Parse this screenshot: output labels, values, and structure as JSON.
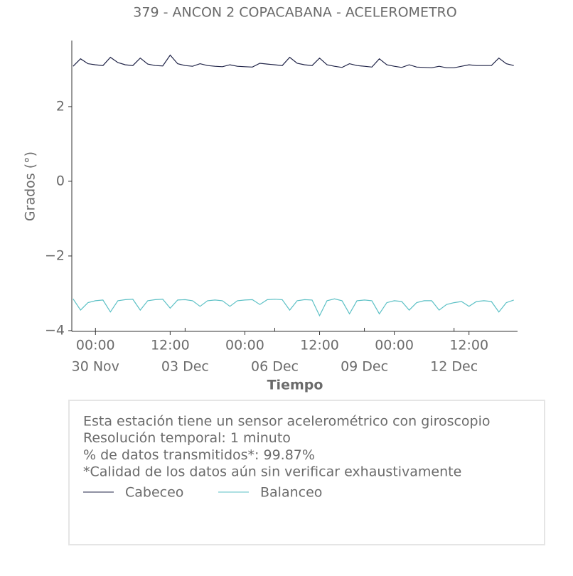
{
  "chart_data": {
    "type": "line",
    "title": "379 - ANCON 2 COPACABANA - ACELEROMETRO",
    "ylabel": "Grados (°)",
    "xlabel": "Tiempo",
    "x": [
      "29 Nov 06:00",
      "29 Nov 12:00",
      "29 Nov 18:00",
      "30 Nov 00:00",
      "30 Nov 06:00",
      "30 Nov 12:00",
      "30 Nov 18:00",
      "01 Dec 00:00",
      "01 Dec 06:00",
      "01 Dec 12:00",
      "01 Dec 18:00",
      "02 Dec 00:00",
      "02 Dec 06:00",
      "02 Dec 12:00",
      "02 Dec 18:00",
      "03 Dec 00:00",
      "03 Dec 06:00",
      "03 Dec 12:00",
      "03 Dec 18:00",
      "04 Dec 00:00",
      "04 Dec 06:00",
      "04 Dec 12:00",
      "04 Dec 18:00",
      "05 Dec 00:00",
      "05 Dec 06:00",
      "05 Dec 12:00",
      "05 Dec 18:00",
      "06 Dec 00:00",
      "06 Dec 06:00",
      "06 Dec 12:00",
      "06 Dec 18:00",
      "07 Dec 00:00",
      "07 Dec 06:00",
      "07 Dec 12:00",
      "07 Dec 18:00",
      "08 Dec 00:00",
      "08 Dec 06:00",
      "08 Dec 12:00",
      "08 Dec 18:00",
      "09 Dec 00:00",
      "09 Dec 06:00",
      "09 Dec 12:00",
      "09 Dec 18:00",
      "10 Dec 00:00",
      "10 Dec 06:00",
      "10 Dec 12:00",
      "10 Dec 18:00",
      "11 Dec 00:00",
      "11 Dec 06:00",
      "11 Dec 12:00",
      "11 Dec 18:00",
      "12 Dec 00:00",
      "12 Dec 06:00",
      "12 Dec 12:00",
      "12 Dec 18:00",
      "13 Dec 00:00",
      "13 Dec 06:00",
      "13 Dec 12:00",
      "13 Dec 18:00",
      "14 Dec 00:00"
    ],
    "series": [
      {
        "name": "Cabeceo",
        "color": "#1f2347",
        "values": [
          3.08,
          3.28,
          3.15,
          3.12,
          3.1,
          3.32,
          3.18,
          3.12,
          3.1,
          3.3,
          3.14,
          3.1,
          3.09,
          3.38,
          3.15,
          3.1,
          3.08,
          3.15,
          3.1,
          3.08,
          3.07,
          3.12,
          3.08,
          3.07,
          3.06,
          3.16,
          3.14,
          3.12,
          3.1,
          3.32,
          3.16,
          3.12,
          3.1,
          3.3,
          3.12,
          3.08,
          3.05,
          3.15,
          3.1,
          3.08,
          3.06,
          3.28,
          3.12,
          3.08,
          3.05,
          3.12,
          3.06,
          3.05,
          3.04,
          3.08,
          3.04,
          3.04,
          3.08,
          3.12,
          3.1,
          3.1,
          3.1,
          3.3,
          3.15,
          3.1
        ]
      },
      {
        "name": "Balanceo",
        "color": "#5bc0c5",
        "values": [
          -3.15,
          -3.45,
          -3.25,
          -3.2,
          -3.18,
          -3.5,
          -3.2,
          -3.17,
          -3.16,
          -3.45,
          -3.2,
          -3.17,
          -3.16,
          -3.4,
          -3.18,
          -3.17,
          -3.2,
          -3.35,
          -3.2,
          -3.18,
          -3.2,
          -3.35,
          -3.2,
          -3.18,
          -3.17,
          -3.3,
          -3.17,
          -3.16,
          -3.17,
          -3.45,
          -3.2,
          -3.17,
          -3.18,
          -3.6,
          -3.2,
          -3.15,
          -3.2,
          -3.55,
          -3.2,
          -3.18,
          -3.2,
          -3.55,
          -3.25,
          -3.2,
          -3.22,
          -3.45,
          -3.25,
          -3.2,
          -3.2,
          -3.45,
          -3.3,
          -3.25,
          -3.22,
          -3.35,
          -3.22,
          -3.2,
          -3.22,
          -3.5,
          -3.25,
          -3.18
        ]
      }
    ],
    "xlim": [
      "29 Nov 05:00",
      "14 Dec 03:00"
    ],
    "xticks": [
      {
        "value": "30 Nov 00:00",
        "label": "00:00"
      },
      {
        "value": "02 Dec 12:00",
        "label": "12:00"
      },
      {
        "value": "05 Dec 00:00",
        "label": "00:00"
      },
      {
        "value": "07 Dec 12:00",
        "label": "12:00"
      },
      {
        "value": "10 Dec 00:00",
        "label": "00:00"
      },
      {
        "value": "12 Dec 12:00",
        "label": "12:00"
      }
    ],
    "xtick_dates": [
      {
        "value": "30 Nov 00:00",
        "label": "30 Nov"
      },
      {
        "value": "03 Dec 00:00",
        "label": "03 Dec"
      },
      {
        "value": "06 Dec 00:00",
        "label": "06 Dec"
      },
      {
        "value": "09 Dec 00:00",
        "label": "09 Dec"
      },
      {
        "value": "12 Dec 00:00",
        "label": "12 Dec"
      }
    ],
    "ylim": [
      -4.02,
      3.77
    ],
    "yticks": [
      {
        "value": -4,
        "label": "−4"
      },
      {
        "value": -2,
        "label": "−2"
      },
      0,
      2
    ],
    "info": [
      "Esta estación tiene un sensor acelerométrico con giroscopio",
      "Resolución temporal: 1 minuto",
      "% de datos transmitidos*: 99.87%",
      "*Calidad de los datos aún sin verificar exhaustivamente"
    ]
  }
}
